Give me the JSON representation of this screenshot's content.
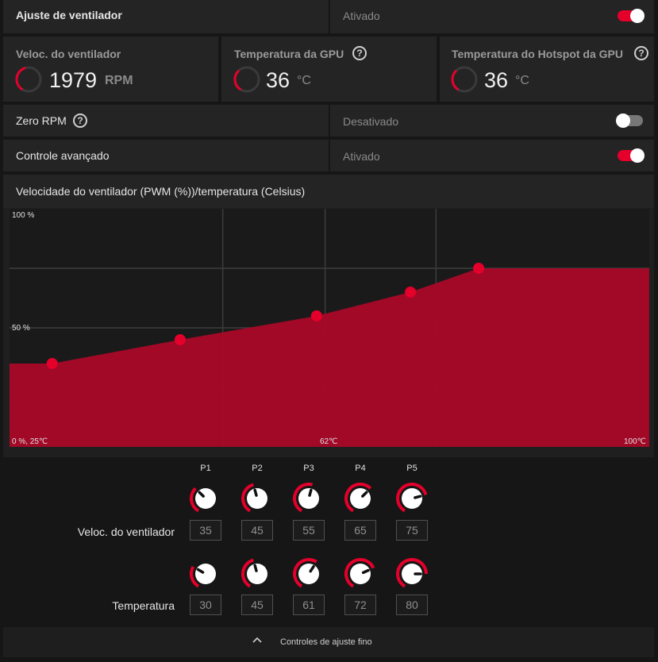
{
  "fan_tuning": {
    "label": "Ajuste de ventilador",
    "status": "Ativado",
    "enabled": true
  },
  "metrics": [
    {
      "label": "Veloc. do ventilador",
      "value": "1979",
      "unit": "RPM",
      "level": 0.45
    },
    {
      "label": "Temperatura da GPU",
      "value": "36",
      "unit": "°C",
      "level": 0.36,
      "help": "?"
    },
    {
      "label": "Temperatura do Hotspot da GPU",
      "value": "36",
      "unit": "°C",
      "level": 0.36,
      "help": "?"
    }
  ],
  "zero_rpm": {
    "label": "Zero RPM",
    "help": "?",
    "status": "Desativado",
    "enabled": false
  },
  "advanced": {
    "label": "Controle avançado",
    "status": "Ativado",
    "enabled": true
  },
  "chart_title": "Velocidade do ventilador (PWM (%))/temperatura (Celsius)",
  "chart_data": {
    "type": "area",
    "x": [
      30,
      45,
      61,
      72,
      80
    ],
    "values": [
      35,
      45,
      55,
      65,
      75
    ],
    "xlim": [
      25,
      100
    ],
    "ylim": [
      0,
      100
    ],
    "grid": true,
    "color": "#ad0828",
    "point_color": "#e4002b",
    "labels": {
      "y_top": "100 %",
      "y_mid": "50 %",
      "origin": "0 %, 25℃",
      "x_mid": "62℃",
      "x_max": "100℃"
    }
  },
  "points": [
    "P1",
    "P2",
    "P3",
    "P4",
    "P5"
  ],
  "row_labels": {
    "speed": "Veloc. do ventilador",
    "temp": "Temperatura"
  },
  "speed_values": [
    "35",
    "45",
    "55",
    "65",
    "75"
  ],
  "temp_values": [
    "30",
    "45",
    "61",
    "72",
    "80"
  ],
  "fine_controls": {
    "label": "Controles de ajuste fino"
  }
}
